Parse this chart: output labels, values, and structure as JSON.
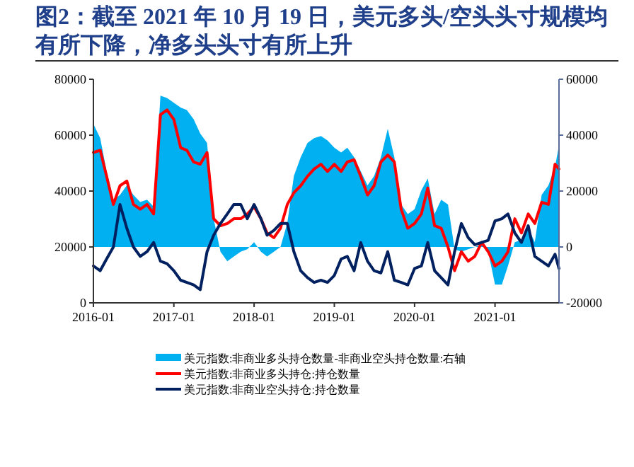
{
  "chart_data": {
    "type": "line",
    "title": "图2：截至 2021 年 10 月 19 日，美元多头/空头头寸规模均有所下降，净多头头寸有所上升",
    "x": [
      "2016-01",
      "2016-02",
      "2016-03",
      "2016-04",
      "2016-05",
      "2016-06",
      "2016-07",
      "2016-08",
      "2016-09",
      "2016-10",
      "2016-11",
      "2016-12",
      "2017-01",
      "2017-02",
      "2017-03",
      "2017-04",
      "2017-05",
      "2017-06",
      "2017-07",
      "2017-08",
      "2017-09",
      "2017-10",
      "2017-11",
      "2017-12",
      "2018-01",
      "2018-02",
      "2018-03",
      "2018-04",
      "2018-05",
      "2018-06",
      "2018-07",
      "2018-08",
      "2018-09",
      "2018-10",
      "2018-11",
      "2018-12",
      "2019-01",
      "2019-02",
      "2019-03",
      "2019-04",
      "2019-05",
      "2019-06",
      "2019-07",
      "2019-08",
      "2019-09",
      "2019-10",
      "2019-11",
      "2019-12",
      "2020-01",
      "2020-02",
      "2020-03",
      "2020-04",
      "2020-05",
      "2020-06",
      "2020-07",
      "2020-08",
      "2020-09",
      "2020-10",
      "2020-11",
      "2020-12",
      "2021-01",
      "2021-02",
      "2021-03",
      "2021-04",
      "2021-05",
      "2021-06",
      "2021-07",
      "2021-08",
      "2021-09",
      "2021-10",
      "2021-10-19"
    ],
    "xlim": [
      "2016-01",
      "2021-10-19"
    ],
    "xticks": [
      {
        "value": "2016-01",
        "label": "2016-01"
      },
      {
        "value": "2017-01",
        "label": "2017-01"
      },
      {
        "value": "2018-01",
        "label": "2018-01"
      },
      {
        "value": "2019-01",
        "label": "2019-01"
      },
      {
        "value": "2020-01",
        "label": "2020-01"
      },
      {
        "value": "2021-01",
        "label": "2021-01"
      }
    ],
    "ylim": [
      0,
      80000
    ],
    "yticks": [
      0,
      20000,
      40000,
      60000,
      80000
    ],
    "y2lim": [
      -20000,
      60000
    ],
    "y2ticks": [
      -20000,
      0,
      20000,
      40000,
      60000
    ],
    "legend": "bottom",
    "series": [
      {
        "name": "美元指数:非商业多头持仓数量-非商业空头持仓数量:右轴",
        "type": "area",
        "axis": "y2",
        "color": "#00b0f0",
        "values": [
          44000,
          38900,
          27100,
          16900,
          18600,
          22000,
          18600,
          16100,
          16900,
          14400,
          54100,
          53300,
          51600,
          49900,
          49000,
          45700,
          40600,
          37200,
          10100,
          -1700,
          -5100,
          -3400,
          -1700,
          -800,
          1700,
          -1700,
          -3400,
          -1700,
          0,
          8500,
          25400,
          32100,
          37200,
          38900,
          39700,
          38100,
          35500,
          33800,
          35500,
          32100,
          27100,
          22000,
          25400,
          32100,
          42300,
          32100,
          15200,
          11800,
          13500,
          20300,
          24500,
          11800,
          16900,
          15200,
          -800,
          -1700,
          -800,
          0,
          800,
          -1700,
          -13500,
          -13500,
          -6800,
          1700,
          2500,
          6800,
          1700,
          18600,
          22000,
          28700,
          36400
        ]
      },
      {
        "name": "美元指数:非商业多头持仓:持仓数量",
        "color": "#ff0000",
        "values": [
          53800,
          54600,
          45300,
          35200,
          41900,
          43600,
          35200,
          33500,
          35200,
          31800,
          67300,
          69000,
          65600,
          55500,
          54600,
          50400,
          49600,
          53800,
          30100,
          27600,
          28400,
          30100,
          30100,
          31800,
          34300,
          30100,
          25000,
          23300,
          26700,
          35200,
          39400,
          41900,
          45300,
          47900,
          49600,
          47000,
          49600,
          47000,
          50400,
          51200,
          45300,
          38600,
          41900,
          50400,
          52900,
          50400,
          33500,
          26700,
          28400,
          31800,
          41100,
          27600,
          26700,
          20000,
          11500,
          18300,
          14900,
          16600,
          21600,
          18300,
          13200,
          14900,
          18300,
          30100,
          25000,
          31800,
          28400,
          36000,
          35200,
          49600,
          47900
        ]
      },
      {
        "name": "美元指数:非商业空头持仓:持仓数量",
        "color": "#002060",
        "values": [
          13200,
          11500,
          15700,
          20000,
          35200,
          26700,
          20000,
          16600,
          18300,
          21600,
          14900,
          14000,
          11500,
          8100,
          7300,
          6400,
          4700,
          18300,
          24200,
          28400,
          31800,
          35200,
          35200,
          30100,
          35200,
          30100,
          24200,
          25900,
          28400,
          28400,
          18300,
          11500,
          9000,
          7300,
          8100,
          7300,
          9800,
          15700,
          16600,
          11500,
          21600,
          14900,
          11500,
          10700,
          18300,
          8100,
          7300,
          6400,
          12300,
          13200,
          21600,
          11500,
          9000,
          6400,
          18300,
          28400,
          23300,
          20800,
          21600,
          22400,
          29300,
          30100,
          31800,
          25000,
          21600,
          27600,
          16600,
          14900,
          13200,
          17400,
          12300
        ]
      }
    ]
  }
}
